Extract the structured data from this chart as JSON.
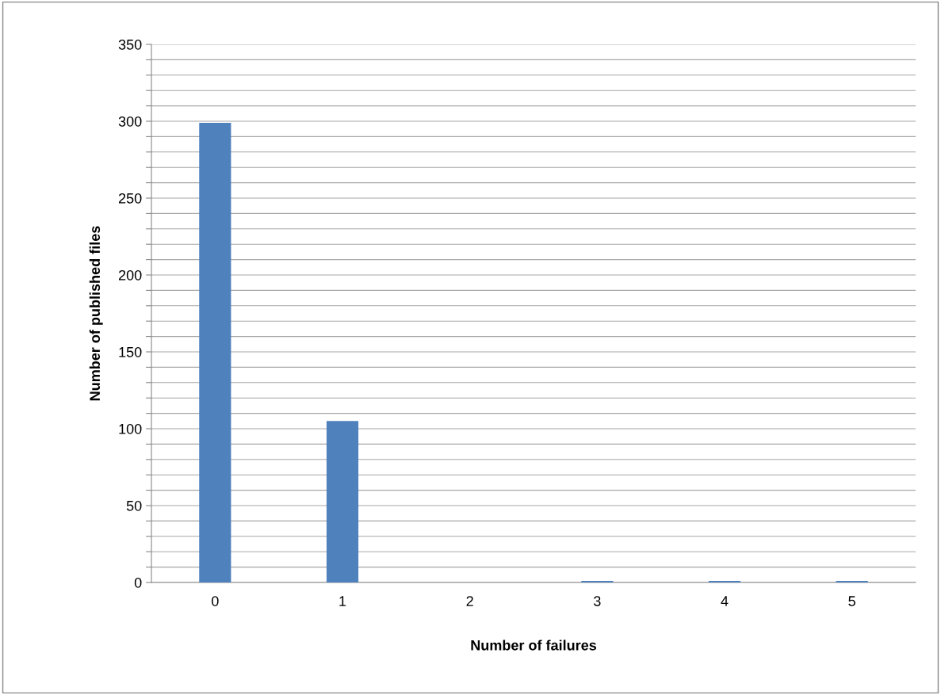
{
  "chart_data": {
    "type": "bar",
    "xlabel": "Number of failures",
    "ylabel": "Number of published files",
    "categories": [
      "0",
      "1",
      "2",
      "3",
      "4",
      "5"
    ],
    "values": [
      299,
      105,
      0,
      1,
      1,
      1
    ],
    "color": "#4f81bd",
    "ylim": [
      0,
      350
    ],
    "yticks": [
      0,
      {
        "value": 10,
        "label": null
      },
      {
        "value": 20,
        "label": null
      },
      {
        "value": 30,
        "label": null
      },
      {
        "value": 40,
        "label": null
      },
      50,
      {
        "value": 60,
        "label": null
      },
      {
        "value": 70,
        "label": null
      },
      {
        "value": 80,
        "label": null
      },
      {
        "value": 90,
        "label": null
      },
      100,
      {
        "value": 110,
        "label": null
      },
      {
        "value": 120,
        "label": null
      },
      {
        "value": 130,
        "label": null
      },
      {
        "value": 140,
        "label": null
      },
      150,
      {
        "value": 160,
        "label": null
      },
      {
        "value": 170,
        "label": null
      },
      {
        "value": 180,
        "label": null
      },
      {
        "value": 190,
        "label": null
      },
      200,
      {
        "value": 210,
        "label": null
      },
      {
        "value": 220,
        "label": null
      },
      {
        "value": 230,
        "label": null
      },
      {
        "value": 240,
        "label": null
      },
      250,
      {
        "value": 260,
        "label": null
      },
      {
        "value": 270,
        "label": null
      },
      {
        "value": 280,
        "label": null
      },
      {
        "value": 290,
        "label": null
      },
      300,
      {
        "value": 310,
        "label": null
      },
      {
        "value": 320,
        "label": null
      },
      {
        "value": 330,
        "label": null
      },
      {
        "value": 340,
        "label": null
      },
      350
    ],
    "grid": "y"
  }
}
